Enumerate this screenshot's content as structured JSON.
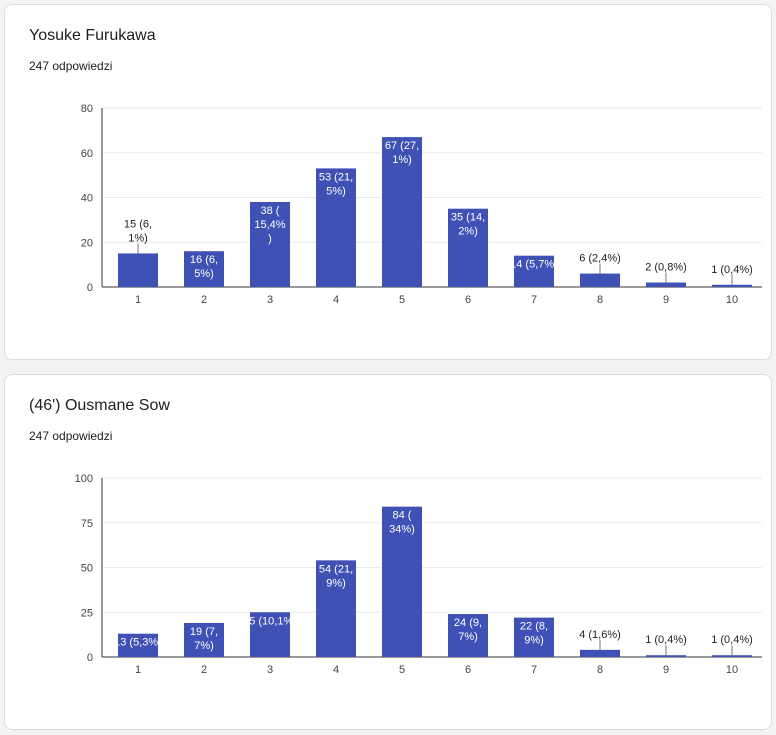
{
  "cards": [
    {
      "title": "Yosuke Furukawa",
      "subtitle": "247 odpowiedzi",
      "chart_data": {
        "type": "bar",
        "categories": [
          "1",
          "2",
          "3",
          "4",
          "5",
          "6",
          "7",
          "8",
          "9",
          "10"
        ],
        "values": [
          15,
          16,
          38,
          53,
          67,
          35,
          14,
          6,
          2,
          1
        ],
        "data_labels": [
          [
            "15 (6,",
            "1%)"
          ],
          [
            "16 (6,",
            "5%)"
          ],
          [
            "38 (",
            "15,4%",
            ")"
          ],
          [
            "53 (21,",
            "5%)"
          ],
          [
            "67 (27,",
            "1%)"
          ],
          [
            "35 (14,",
            "2%)"
          ],
          [
            "14 (5,7%)"
          ],
          [
            "6 (2,4%)"
          ],
          [
            "2 (0,8%)"
          ],
          [
            "1 (0,4%)"
          ]
        ],
        "yticks": [
          0,
          20,
          40,
          60,
          80
        ],
        "ylim": [
          0,
          80
        ],
        "title": "",
        "xlabel": "",
        "ylabel": "",
        "grid": true,
        "bar_color": "#3f51b5"
      }
    },
    {
      "title": "(46') Ousmane Sow",
      "subtitle": "247 odpowiedzi",
      "chart_data": {
        "type": "bar",
        "categories": [
          "1",
          "2",
          "3",
          "4",
          "5",
          "6",
          "7",
          "8",
          "9",
          "10"
        ],
        "values": [
          13,
          19,
          25,
          54,
          84,
          24,
          22,
          4,
          1,
          1
        ],
        "data_labels": [
          [
            "13 (5,3%)"
          ],
          [
            "19 (7,",
            "7%)"
          ],
          [
            "25 (10,1%)"
          ],
          [
            "54 (21,",
            "9%)"
          ],
          [
            "84 (",
            "34%)"
          ],
          [
            "24 (9,",
            "7%)"
          ],
          [
            "22 (8,",
            "9%)"
          ],
          [
            "4 (1,6%)"
          ],
          [
            "1 (0,4%)"
          ],
          [
            "1 (0,4%)"
          ]
        ],
        "yticks": [
          0,
          25,
          50,
          75,
          100
        ],
        "ylim": [
          0,
          100
        ],
        "title": "",
        "xlabel": "",
        "ylabel": "",
        "grid": true,
        "bar_color": "#3f51b5"
      }
    }
  ]
}
